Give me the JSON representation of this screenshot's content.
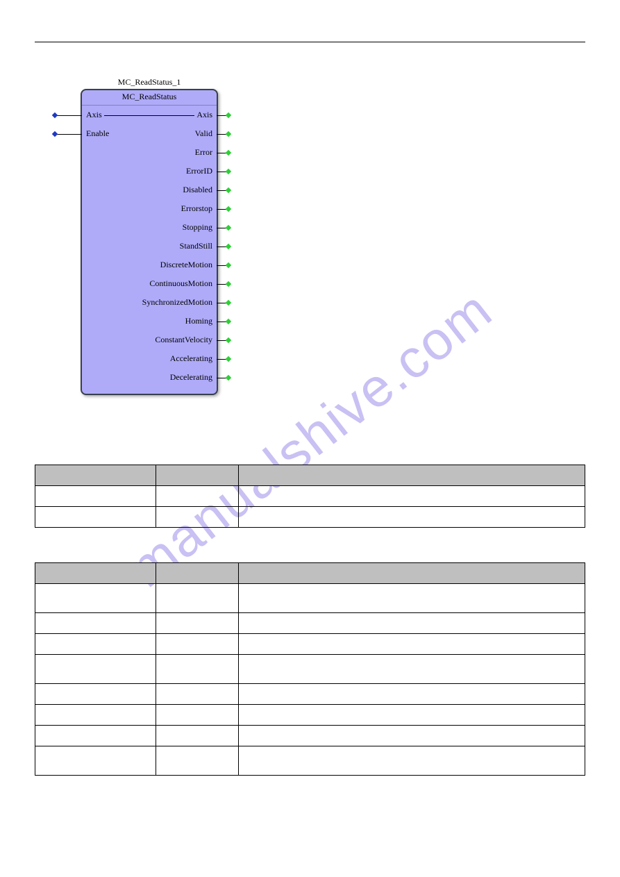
{
  "watermark_text": "manualshive.com",
  "watermark_color": "#8a74e6",
  "block": {
    "instance_label": "MC_ReadStatus_1",
    "type_name": "MC_ReadStatus",
    "background_color": "#afabf9",
    "border_color": "#37404c",
    "inputs": [
      {
        "label": "Axis",
        "dot_color": "#1e39c2",
        "is_through": true
      },
      {
        "label": "Enable",
        "dot_color": "#1e39c2",
        "is_through": false
      }
    ],
    "outputs": [
      {
        "label": "Axis",
        "dot_color": "#2fcf38"
      },
      {
        "label": "Valid",
        "dot_color": "#2fcf38"
      },
      {
        "label": "Error",
        "dot_color": "#2fcf38"
      },
      {
        "label": "ErrorID",
        "dot_color": "#2fcf38"
      },
      {
        "label": "Disabled",
        "dot_color": "#2fcf38"
      },
      {
        "label": "Errorstop",
        "dot_color": "#2fcf38"
      },
      {
        "label": "Stopping",
        "dot_color": "#2fcf38"
      },
      {
        "label": "StandStill",
        "dot_color": "#2fcf38"
      },
      {
        "label": "DiscreteMotion",
        "dot_color": "#2fcf38"
      },
      {
        "label": "ContinuousMotion",
        "dot_color": "#2fcf38"
      },
      {
        "label": "SynchronizedMotion",
        "dot_color": "#2fcf38"
      },
      {
        "label": "Homing",
        "dot_color": "#2fcf38"
      },
      {
        "label": "ConstantVelocity",
        "dot_color": "#2fcf38"
      },
      {
        "label": "Accelerating",
        "dot_color": "#2fcf38"
      },
      {
        "label": "Decelerating",
        "dot_color": "#2fcf38"
      }
    ]
  },
  "table1": {
    "header_bg": "#bfbfbf",
    "columns": [
      "",
      "",
      ""
    ],
    "rows": [
      [
        "",
        "",
        ""
      ],
      [
        "",
        "",
        ""
      ]
    ]
  },
  "table2": {
    "header_bg": "#bfbfbf",
    "columns": [
      "",
      "",
      ""
    ],
    "rows": [
      [
        "",
        "",
        ""
      ],
      [
        "",
        "",
        ""
      ],
      [
        "",
        "",
        ""
      ],
      [
        "",
        "",
        ""
      ],
      [
        "",
        "",
        ""
      ],
      [
        "",
        "",
        ""
      ],
      [
        "",
        "",
        ""
      ],
      [
        "",
        "",
        ""
      ]
    ]
  }
}
